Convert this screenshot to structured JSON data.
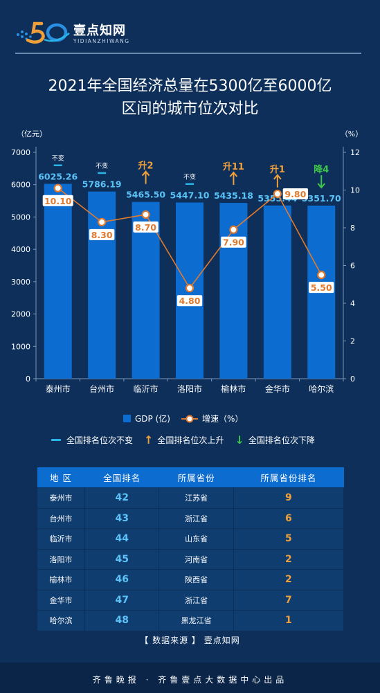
{
  "header": {
    "logo_text": "壹点知网",
    "logo_sub": "YIDIANZHIWANG",
    "logo_mark_label": "50",
    "logo_icon": "yidian-logo-icon"
  },
  "title": {
    "line1": "2021年全国经济总量在5300亿至6000亿",
    "line2": "区间的城市位次对比"
  },
  "chart_data": {
    "type": "bar",
    "title": "2021年全国经济总量在5300亿至6000亿区间的城市位次对比",
    "categories": [
      "泰州市",
      "台州市",
      "临沂市",
      "洛阳市",
      "榆林市",
      "金华市",
      "哈尔滨"
    ],
    "series": [
      {
        "name": "GDP (亿)",
        "type": "bar",
        "axis": "left",
        "color": "#0d6ccf",
        "values": [
          6025.26,
          5786.19,
          5465.5,
          5447.1,
          5435.18,
          5355.44,
          5351.7
        ],
        "labels": [
          "6025.26",
          "5786.19",
          "5465.50",
          "5447.10",
          "5435.18",
          "5355.44",
          "5351.70"
        ]
      },
      {
        "name": "增速（%）",
        "type": "line",
        "axis": "right",
        "color": "#e07a2e",
        "values": [
          10.1,
          8.3,
          8.7,
          4.8,
          7.9,
          9.8,
          5.5
        ],
        "labels": [
          "10.10",
          "8.30",
          "8.70",
          "4.80",
          "7.90",
          "9.80",
          "5.50"
        ]
      }
    ],
    "rank_change": [
      {
        "label": "不变",
        "dir": "same"
      },
      {
        "label": "不变",
        "dir": "same"
      },
      {
        "label": "升2",
        "dir": "up"
      },
      {
        "label": "不变",
        "dir": "same"
      },
      {
        "label": "升11",
        "dir": "up"
      },
      {
        "label": "升1",
        "dir": "up"
      },
      {
        "label": "降4",
        "dir": "down"
      }
    ],
    "ylabel_left": "（亿元）",
    "ylabel_right": "（%）",
    "ylim_left": [
      0,
      7000
    ],
    "yticks_left": [
      0,
      1000,
      2000,
      3000,
      4000,
      5000,
      6000,
      7000
    ],
    "ylim_right": [
      0,
      12
    ],
    "yticks_right": [
      0,
      2,
      4,
      6,
      8,
      10,
      12
    ],
    "grid": false,
    "legend_position": "bottom",
    "colors": {
      "bar": "#0d6ccf",
      "line": "#e07a2e",
      "same": "#2ab5e8",
      "up": "#f0a03a",
      "down": "#3ec84a",
      "bar_label": "#5bc3f7"
    }
  },
  "legend": {
    "gdp": "GDP (亿)",
    "growth": "增速（%）",
    "same": "全国排名位次不变",
    "up": "全国排名位次上升",
    "down": "全国排名位次下降",
    "up_arrow": "↑",
    "down_arrow": "↓"
  },
  "table": {
    "headers": [
      "地 区",
      "全国排名",
      "所属省份",
      "所属省份排名"
    ],
    "rows": [
      [
        "泰州市",
        "42",
        "江苏省",
        "9"
      ],
      [
        "台州市",
        "43",
        "浙江省",
        "6"
      ],
      [
        "临沂市",
        "44",
        "山东省",
        "5"
      ],
      [
        "洛阳市",
        "45",
        "河南省",
        "2"
      ],
      [
        "榆林市",
        "46",
        "陕西省",
        "2"
      ],
      [
        "金华市",
        "47",
        "浙江省",
        "7"
      ],
      [
        "哈尔滨",
        "48",
        "黑龙江省",
        "1"
      ]
    ]
  },
  "source": "【 数据来源 】 壹点知网",
  "footer": "齐鲁晚报 · 齐鲁壹点大数据中心出品"
}
